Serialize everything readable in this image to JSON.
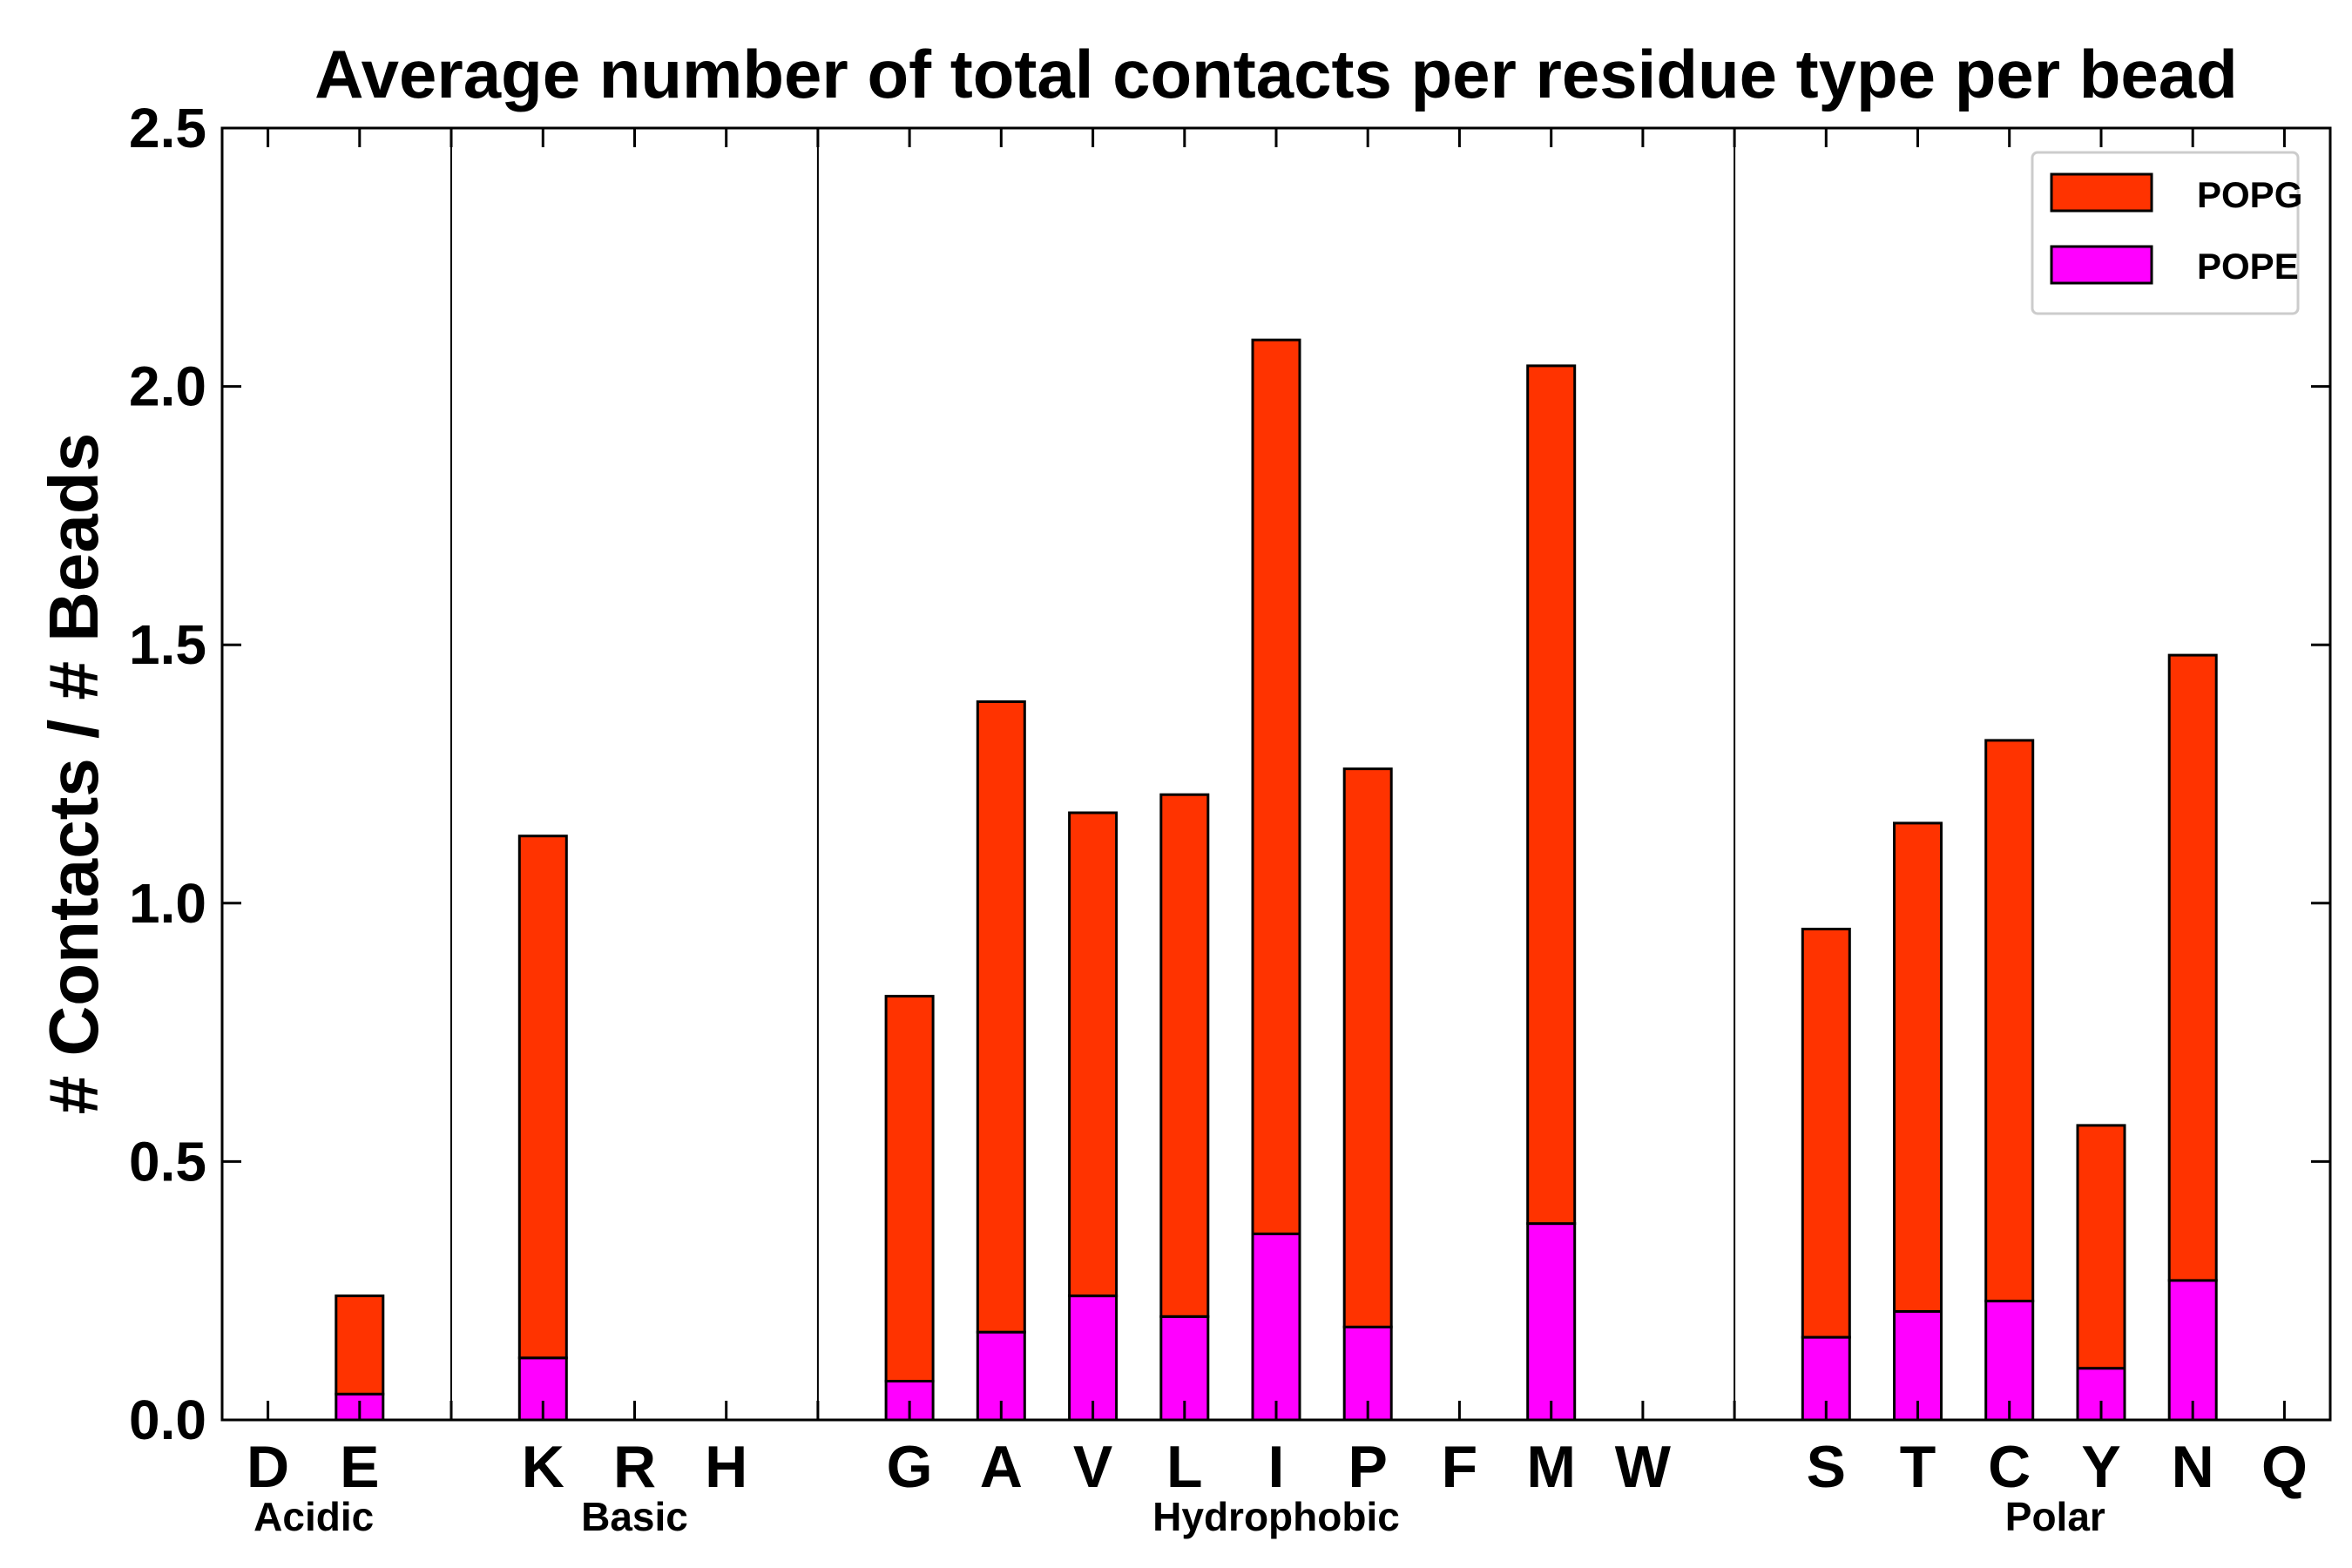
{
  "chart_data": {
    "type": "bar",
    "stacked": true,
    "title": "Average number of total contacts per residue type per bead",
    "xlabel": "",
    "ylabel": "# Contacts / # Beads",
    "ylim": [
      0,
      2.5
    ],
    "yticks": [
      "0.0",
      "0.5",
      "1.0",
      "1.5",
      "2.0",
      "2.5"
    ],
    "categories": [
      "D",
      "E",
      "",
      "K",
      "R",
      "H",
      "",
      "G",
      "A",
      "V",
      "L",
      "I",
      "P",
      "F",
      "M",
      "W",
      "",
      "S",
      "T",
      "C",
      "Y",
      "N",
      "Q"
    ],
    "series": [
      {
        "name": "POPE",
        "color": "#ff00ff",
        "values": [
          0,
          0.05,
          0,
          0.12,
          0,
          0,
          0,
          0.075,
          0.17,
          0.24,
          0.2,
          0.36,
          0.18,
          0,
          0.38,
          0,
          0,
          0.16,
          0.21,
          0.23,
          0.1,
          0.27,
          0
        ]
      },
      {
        "name": "POPG",
        "color": "#ff3300",
        "values": [
          0,
          0.19,
          0,
          1.01,
          0,
          0,
          0,
          0.745,
          1.22,
          0.935,
          1.01,
          1.73,
          1.08,
          0,
          1.66,
          0,
          0,
          0.79,
          0.945,
          1.085,
          0.47,
          1.21,
          0
        ]
      }
    ],
    "groups": [
      {
        "name": "Acidic",
        "members": [
          "D",
          "E"
        ]
      },
      {
        "name": "Basic",
        "members": [
          "K",
          "R",
          "H"
        ]
      },
      {
        "name": "Hydrophobic",
        "members": [
          "G",
          "A",
          "V",
          "L",
          "I",
          "P",
          "F",
          "M",
          "W"
        ]
      },
      {
        "name": "Polar",
        "members": [
          "S",
          "T",
          "C",
          "Y",
          "N",
          "Q"
        ]
      }
    ],
    "group_separators_after": [
      2,
      6,
      16
    ],
    "legend": {
      "placement": "top-right",
      "entries": [
        "POPG",
        "POPE"
      ]
    },
    "grid": false
  }
}
